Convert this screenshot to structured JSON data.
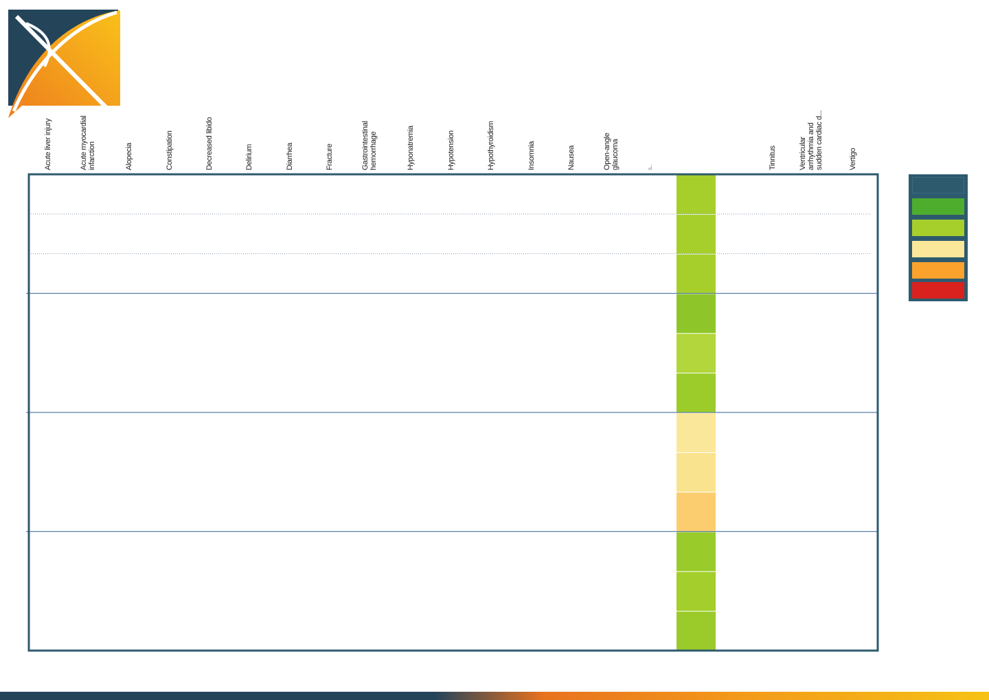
{
  "chart_data": {
    "type": "heatmap",
    "title": "",
    "columns": [
      "Acute liver injury",
      "Acute myocardial infarction",
      "Alopecia",
      "Constipation",
      "Decreased libido",
      "Delirium",
      "Diarrhea",
      "Fracture",
      "Gastrointestinal hemorrhage",
      "Hyponatremia",
      "Hypotension",
      "Hypothyroidism",
      "Insomnia",
      "Nausea",
      "Open-angle glaucoma",
      "S...",
      "",
      "Tinnitus",
      "Ventricular arrhythmia and sudden cardiac d...",
      "Vertigo"
    ],
    "filled_column": 16,
    "row_groups": 4,
    "rows_per_group": 3,
    "cells": [
      {
        "group": 1,
        "row": 1,
        "color": "#a6cf2c"
      },
      {
        "group": 1,
        "row": 2,
        "color": "#a6cf2c"
      },
      {
        "group": 1,
        "row": 3,
        "color": "#a6cf2c"
      },
      {
        "group": 2,
        "row": 1,
        "color": "#8ec62a"
      },
      {
        "group": 2,
        "row": 2,
        "color": "#b2d63c"
      },
      {
        "group": 2,
        "row": 3,
        "color": "#9ccc2a"
      },
      {
        "group": 3,
        "row": 1,
        "color": "#fbe79a"
      },
      {
        "group": 3,
        "row": 2,
        "color": "#fae38f"
      },
      {
        "group": 3,
        "row": 3,
        "color": "#fccd6e"
      },
      {
        "group": 4,
        "row": 1,
        "color": "#99cb2b"
      },
      {
        "group": 4,
        "row": 2,
        "color": "#a3ce2c"
      },
      {
        "group": 4,
        "row": 3,
        "color": "#9acb2b"
      }
    ],
    "legend_colors": [
      "#2e5a6e",
      "#4fad2e",
      "#a6cf2c",
      "#fbe79a",
      "#fba22c",
      "#d9211e"
    ]
  },
  "colors": {
    "frame": "#2e5a6e",
    "group_line": "#5a7fa8",
    "dotted_line": "#8a9ab0",
    "footer_left": "#24445a",
    "footer_right": "#f6c215",
    "logo_navy": "#24445a",
    "logo_orange": "#f08a1c",
    "logo_yellow": "#f9b91a"
  }
}
